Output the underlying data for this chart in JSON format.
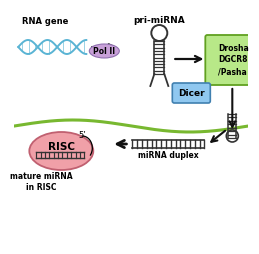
{
  "bg_color": "#ffffff",
  "dna_color": "#5ab4d4",
  "polII_color": "#c8a0d8",
  "drosha_color": "#b8e888",
  "dicer_color": "#90c8f0",
  "risc_color": "#f0a0a8",
  "arrow_color": "#111111",
  "sep_line_color": "#78b830",
  "stem_color": "#333333",
  "text_rna_gene": "RNA gene",
  "text_pri_mirna": "pri-miRNA",
  "text_polII": "Pol II",
  "text_drosha": "Drosha\nDGCR8\n/Pasha",
  "text_dicer": "Dicer",
  "text_mirna_duplex": "miRNA duplex",
  "text_risc": "RISC",
  "text_mature": "mature miRNA\nin RISC",
  "text_5prime": "5’"
}
